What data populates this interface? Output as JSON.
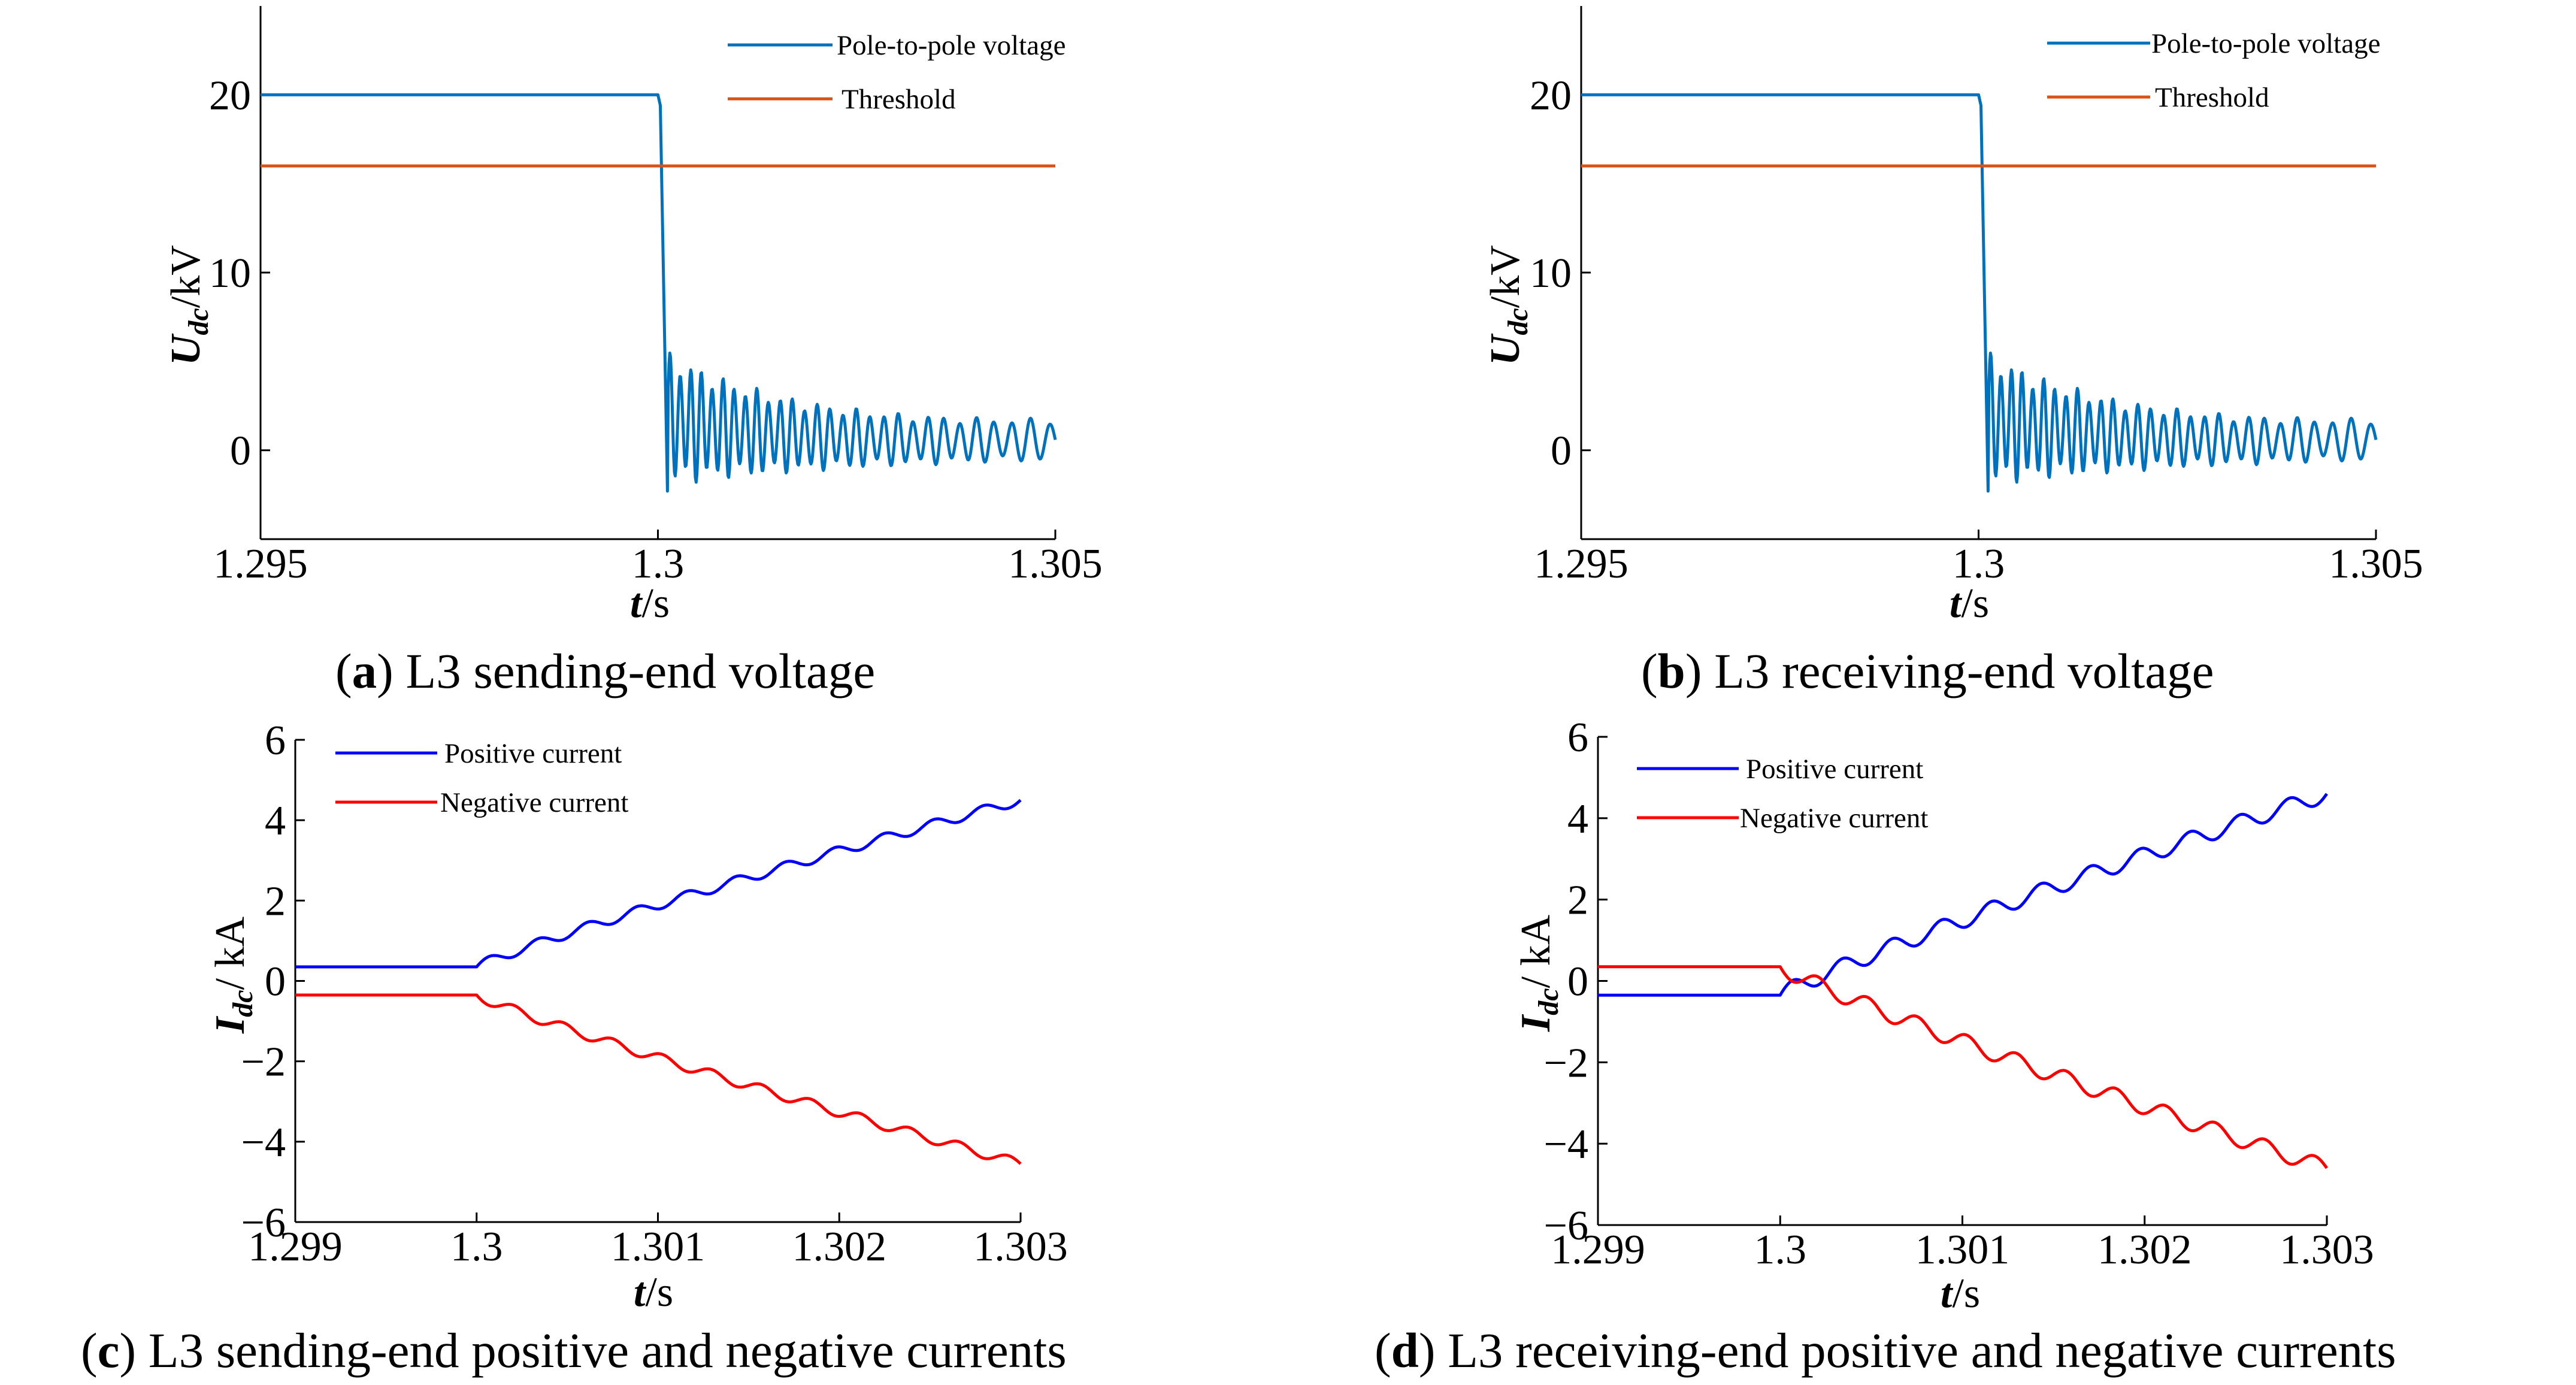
{
  "figure": {
    "colors": {
      "voltage": "#0072BD",
      "threshold": "#D95319",
      "positive": "#0000FF",
      "negative": "#FF0000"
    }
  },
  "chart_data": [
    {
      "id": "a",
      "type": "line",
      "caption_letter": "a",
      "caption_text": " L3 sending-end voltage",
      "xlabel_sym": "t",
      "xlabel_unit": "/s",
      "ylabel_sym": "U",
      "ylabel_sub": "dc",
      "ylabel_unit": "/kV",
      "xlim": [
        1.295,
        1.305
      ],
      "ylim": [
        -5,
        25
      ],
      "xticks": [
        1.295,
        1.3,
        1.305
      ],
      "xtick_labels": [
        "1.295",
        "1.3",
        "1.305"
      ],
      "yticks": [
        0,
        10,
        20
      ],
      "ytick_labels": [
        "0",
        "10",
        "20"
      ],
      "series": [
        {
          "name": "Pole-to-pole voltage",
          "color": "#0072BD",
          "kind": "step_osc",
          "pre": 20.0,
          "t0": 1.3,
          "fall_end": 1.30012,
          "x_end": 1.305,
          "osc_start_amp": 3.8,
          "osc_end_amp": 0.8,
          "final": 0.5,
          "cycles": 38,
          "dip": -2.3
        },
        {
          "name": "Threshold",
          "color": "#D95319",
          "kind": "const",
          "value": 16.0,
          "x": [
            1.295,
            1.305
          ]
        }
      ]
    },
    {
      "id": "b",
      "type": "line",
      "caption_letter": "b",
      "caption_text": " L3 receiving-end voltage",
      "xlabel_sym": "t",
      "xlabel_unit": "/s",
      "ylabel_sym": "U",
      "ylabel_sub": "dc",
      "ylabel_unit": "/kV",
      "xlim": [
        1.295,
        1.305
      ],
      "ylim": [
        -5,
        25
      ],
      "xticks": [
        1.295,
        1.3,
        1.305
      ],
      "xtick_labels": [
        "1.295",
        "1.3",
        "1.305"
      ],
      "yticks": [
        0,
        10,
        20
      ],
      "ytick_labels": [
        "0",
        "10",
        "20"
      ],
      "series": [
        {
          "name": "Pole-to-pole voltage",
          "color": "#0072BD",
          "kind": "step_osc",
          "pre": 20.0,
          "t0": 1.3,
          "fall_end": 1.30012,
          "x_end": 1.305,
          "osc_start_amp": 3.8,
          "osc_end_amp": 0.8,
          "final": 0.5,
          "cycles": 38,
          "dip": -2.3
        },
        {
          "name": "Threshold",
          "color": "#D95319",
          "kind": "const",
          "value": 16.0,
          "x": [
            1.295,
            1.305
          ]
        }
      ]
    },
    {
      "id": "c",
      "type": "line",
      "caption_letter": "c",
      "caption_text": " L3 sending-end positive and negative currents",
      "xlabel_sym": "t",
      "xlabel_unit": "/s",
      "ylabel_sym": "I",
      "ylabel_sub": "dc",
      "ylabel_unit": "/ kA",
      "xlim": [
        1.299,
        1.303
      ],
      "ylim": [
        -6,
        6
      ],
      "xticks": [
        1.299,
        1.3,
        1.301,
        1.302,
        1.303
      ],
      "xtick_labels": [
        "1.299",
        "1.3",
        "1.301",
        "1.302",
        "1.303"
      ],
      "yticks": [
        -6,
        -4,
        -2,
        0,
        2,
        4,
        6
      ],
      "ytick_labels": [
        "−6",
        "−4",
        "−2",
        "0",
        "2",
        "4",
        "6"
      ],
      "series": [
        {
          "name": "Positive current",
          "color": "#0000FF",
          "kind": "ramp",
          "pre": 0.35,
          "t0": 1.3,
          "end": 4.5,
          "x_end": 1.303,
          "ripple": 0.12,
          "steps": 11
        },
        {
          "name": "Negative current",
          "color": "#FF0000",
          "kind": "ramp",
          "pre": -0.35,
          "t0": 1.3,
          "end": -4.55,
          "x_end": 1.303,
          "ripple": 0.12,
          "steps": 11
        }
      ]
    },
    {
      "id": "d",
      "type": "line",
      "caption_letter": "d",
      "caption_text": " L3 receiving-end positive and negative currents",
      "xlabel_sym": "t",
      "xlabel_unit": "/s",
      "ylabel_sym": "I",
      "ylabel_sub": "dc",
      "ylabel_unit": "/ kA",
      "xlim": [
        1.299,
        1.303
      ],
      "ylim": [
        -6,
        6
      ],
      "xticks": [
        1.299,
        1.3,
        1.301,
        1.302,
        1.303
      ],
      "xtick_labels": [
        "1.299",
        "1.3",
        "1.301",
        "1.302",
        "1.303"
      ],
      "yticks": [
        -6,
        -4,
        -2,
        0,
        2,
        4,
        6
      ],
      "ytick_labels": [
        "−6",
        "−4",
        "−2",
        "0",
        "2",
        "4",
        "6"
      ],
      "series": [
        {
          "name": "Positive current",
          "color": "#0000FF",
          "kind": "ramp",
          "pre": -0.35,
          "t0": 1.3,
          "end": 4.6,
          "x_end": 1.303,
          "ripple": 0.2,
          "steps": 11
        },
        {
          "name": "Negative current",
          "color": "#FF0000",
          "kind": "ramp",
          "pre": 0.35,
          "t0": 1.3,
          "end": -4.6,
          "x_end": 1.303,
          "ripple": 0.2,
          "steps": 11
        }
      ]
    }
  ]
}
